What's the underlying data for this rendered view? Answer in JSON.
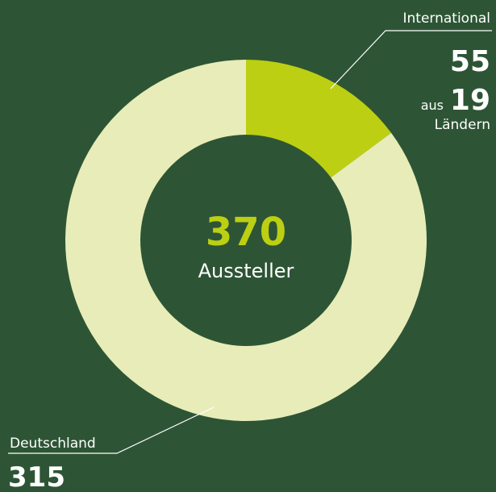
{
  "chart_data": {
    "type": "donut",
    "categories": [
      "International",
      "Deutschland"
    ],
    "values": [
      55,
      315
    ],
    "colors": [
      "#bccf12",
      "#e8ecb8"
    ],
    "center_value": 370,
    "center_label": "Aussteller",
    "international_detail": {
      "prefix": "aus",
      "value": 19,
      "suffix": "Ländern"
    }
  }
}
